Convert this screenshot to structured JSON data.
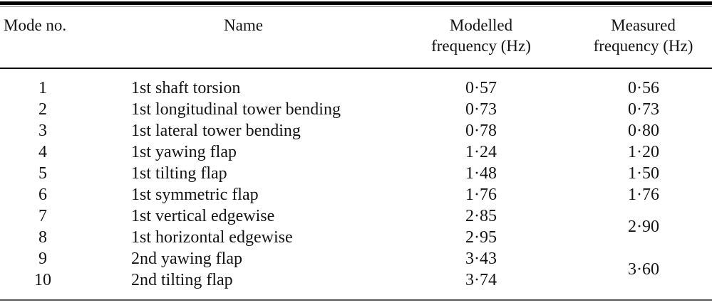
{
  "colors": {
    "text": "#141414",
    "rule": "#000000",
    "background": "#ffffff"
  },
  "table": {
    "headers": {
      "mode_no": "Mode no.",
      "name": "Name",
      "modelled": "Modelled\nfrequency (Hz)",
      "measured": "Measured\nfrequency (Hz)"
    },
    "rows": [
      {
        "no": "1",
        "name": "1st shaft torsion",
        "modelled": "0·57",
        "measured": "0·56"
      },
      {
        "no": "2",
        "name": "1st longitudinal tower bending",
        "modelled": "0·73",
        "measured": "0·73"
      },
      {
        "no": "3",
        "name": "1st lateral tower bending",
        "modelled": "0·78",
        "measured": "0·80"
      },
      {
        "no": "4",
        "name": "1st yawing flap",
        "modelled": "1·24",
        "measured": "1·20"
      },
      {
        "no": "5",
        "name": "1st tilting flap",
        "modelled": "1·48",
        "measured": "1·50"
      },
      {
        "no": "6",
        "name": "1st symmetric flap",
        "modelled": "1·76",
        "measured": "1·76"
      },
      {
        "no": "7",
        "name": "1st vertical edgewise",
        "modelled": "2·85",
        "measured": "2·90"
      },
      {
        "no": "8",
        "name": "1st horizontal edgewise",
        "modelled": "2·95"
      },
      {
        "no": "9",
        "name": "2nd yawing flap",
        "modelled": "3·43",
        "measured": "3·60"
      },
      {
        "no": "10",
        "name": "2nd tilting flap",
        "modelled": "3·74"
      }
    ]
  }
}
